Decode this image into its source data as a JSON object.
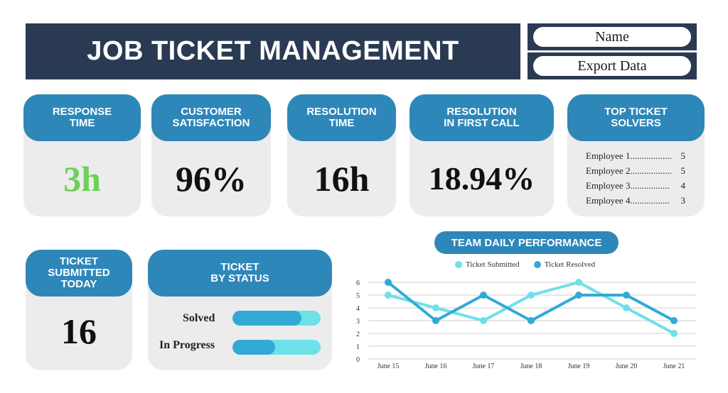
{
  "header": {
    "title": "JOB TICKET MANAGEMENT"
  },
  "controls": {
    "name_label": "Name",
    "export_label": "Export Data"
  },
  "kpis": {
    "response_time": {
      "label": "RESPONSE\nTIME",
      "value": "3h",
      "value_color": "#6dcf5a"
    },
    "customer_satisfaction": {
      "label": "CUSTOMER\nSATISFACTION",
      "value": "96%"
    },
    "resolution_time": {
      "label": "RESOLUTION\nTIME",
      "value": "16h"
    },
    "resolution_first_call": {
      "label": "RESOLUTION\nIN FIRST CALL",
      "value": "18.94%"
    },
    "tickets_today": {
      "label": "TICKET\nSUBMITTED\nTODAY",
      "value": "16"
    }
  },
  "top_solvers": {
    "label": "TOP TICKET\nSOLVERS",
    "rows": [
      {
        "name": "Employee 1..................",
        "count": "5"
      },
      {
        "name": "Employee 2..................",
        "count": "5"
      },
      {
        "name": "Employee 3.................",
        "count": "4"
      },
      {
        "name": "Employee 4.................",
        "count": "3"
      }
    ]
  },
  "status": {
    "label": "TICKET\nBY STATUS",
    "items": [
      {
        "name": "Solved",
        "fraction": 0.78
      },
      {
        "name": "In Progress",
        "fraction": 0.48
      }
    ]
  },
  "performance": {
    "title": "TEAM DAILY PERFORMANCE",
    "colors": {
      "submitted": "#6ee0ea",
      "resolved": "#33a9d6",
      "grid": "#cccccc"
    }
  },
  "chart_data": {
    "type": "line",
    "categories": [
      "June 15",
      "June 16",
      "June 17",
      "June 18",
      "June 19",
      "June 20",
      "June 21"
    ],
    "series": [
      {
        "name": "Ticket Submitted",
        "values": [
          5,
          4,
          3,
          5,
          6,
          4,
          2
        ]
      },
      {
        "name": "Ticket Resolved",
        "values": [
          6,
          3,
          5,
          3,
          5,
          5,
          3
        ]
      }
    ],
    "ylim": [
      0,
      6
    ],
    "yticks": [
      "0",
      "1",
      "2",
      "3",
      "4",
      "5",
      "6"
    ],
    "grid": true,
    "legend": "top"
  }
}
